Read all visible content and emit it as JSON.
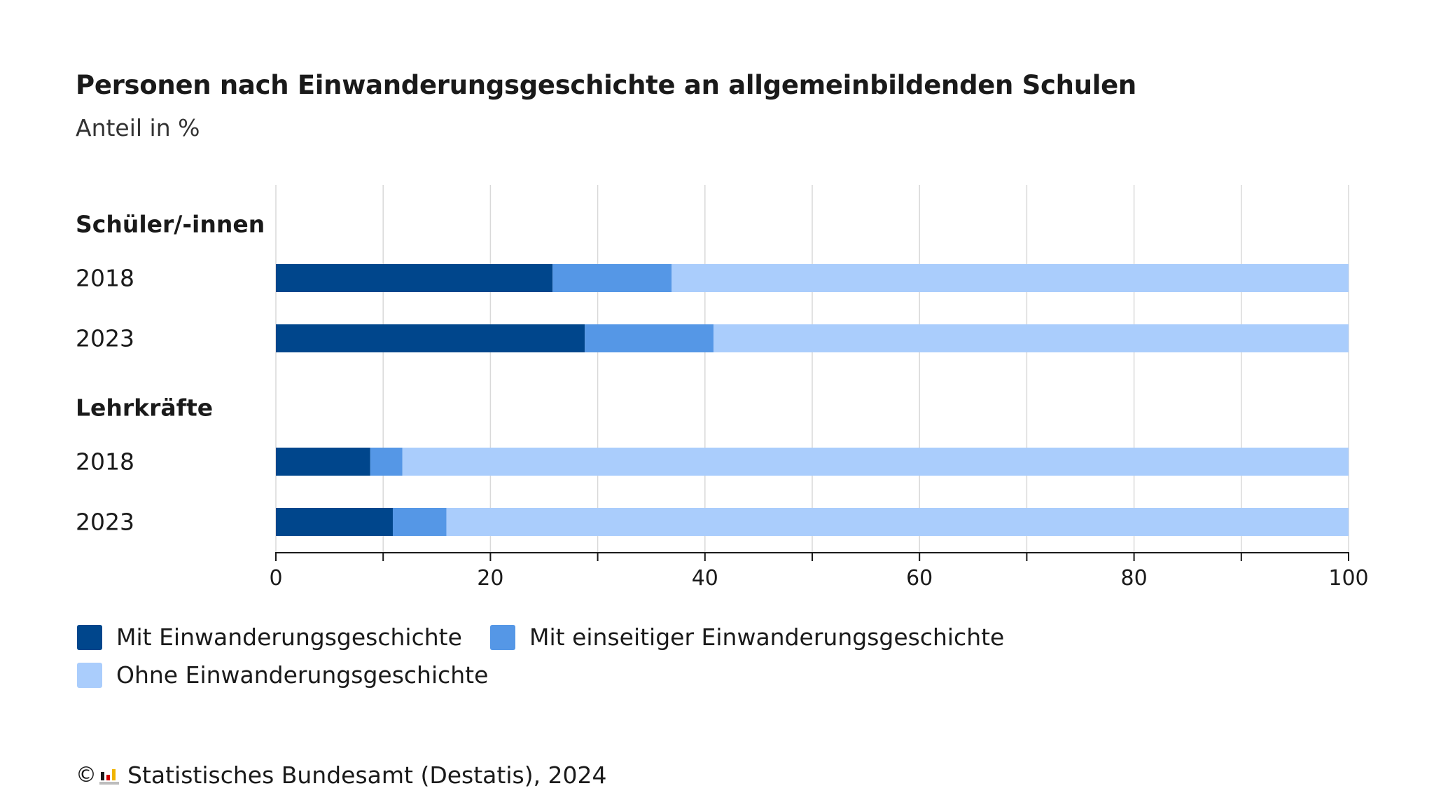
{
  "title": "Personen nach Einwanderungsgeschichte an allgemeinbildenden Schulen",
  "subtitle": "Anteil in %",
  "colors": {
    "mit": "#00468c",
    "einseitig": "#5597e6",
    "ohne": "#aacdfc",
    "grid": "#d9d9d9",
    "axis": "#1a1a1a"
  },
  "chart_data": {
    "type": "bar",
    "orientation": "horizontal",
    "stacked": true,
    "xlim": [
      0,
      100
    ],
    "xticks": [
      0,
      20,
      40,
      60,
      80,
      100
    ],
    "grid": true,
    "legend_position": "bottom-left",
    "groups": [
      {
        "label": "Schüler/-innen",
        "rows": [
          {
            "label": "2018",
            "values": [
              25.8,
              11.1,
              63.1
            ]
          },
          {
            "label": "2023",
            "values": [
              28.8,
              12.0,
              59.2
            ]
          }
        ]
      },
      {
        "label": "Lehrkräfte",
        "rows": [
          {
            "label": "2018",
            "values": [
              8.8,
              3.0,
              88.2
            ]
          },
          {
            "label": "2023",
            "values": [
              10.9,
              5.0,
              84.1
            ]
          }
        ]
      }
    ],
    "series": [
      {
        "name": "Mit Einwanderungsgeschichte",
        "color_key": "mit"
      },
      {
        "name": "Mit einseitiger Einwanderungsgeschichte",
        "color_key": "einseitig"
      },
      {
        "name": "Ohne Einwanderungsgeschichte",
        "color_key": "ohne"
      }
    ]
  },
  "footer": {
    "copyright_symbol": "©",
    "source": "Statistisches Bundesamt (Destatis), 2024"
  }
}
